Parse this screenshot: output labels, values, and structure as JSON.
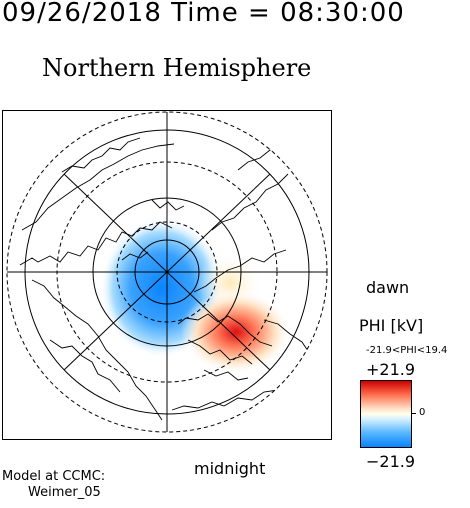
{
  "header": {
    "timestamp": "09/26/2018 Time = 08:30:00",
    "title": "Northern Hemisphere"
  },
  "map": {
    "projection": "polar",
    "pole": "north",
    "latitude_rings_solid": [
      80,
      60
    ],
    "latitude_rings_dashed": [
      70,
      50,
      40
    ],
    "features": [
      "coastlines",
      "potential-cells"
    ]
  },
  "orientation": {
    "dawn": "dawn",
    "midnight": "midnight"
  },
  "colorbar": {
    "title": "PHI [kV]",
    "range_text": "-21.9<PHI<19.4",
    "max_label": "+21.9",
    "min_label": "−21.9",
    "zero_label": "0",
    "colors": {
      "positive": "#dd1010",
      "neutral": "#ffffea",
      "negative": "#1e8cff"
    }
  },
  "footer": {
    "model_label": "Model at CCMC:",
    "model_name": "Weimer_05"
  }
}
